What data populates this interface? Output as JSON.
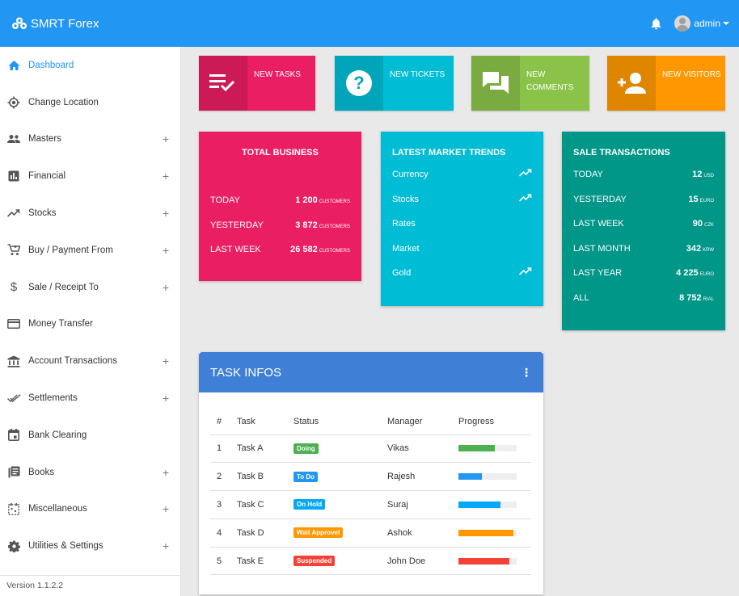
{
  "app": {
    "title": "SMRT Forex",
    "user": "admin"
  },
  "sidebar": {
    "items": [
      {
        "label": "Dashboard",
        "icon": "home-icon",
        "active": true,
        "expandable": false
      },
      {
        "label": "Change Location",
        "icon": "location-icon",
        "expandable": false
      },
      {
        "label": "Masters",
        "icon": "people-icon",
        "expandable": true
      },
      {
        "label": "Financial",
        "icon": "bar-chart-icon",
        "expandable": true
      },
      {
        "label": "Stocks",
        "icon": "trending-icon",
        "expandable": true
      },
      {
        "label": "Buy / Payment From",
        "icon": "cart-icon",
        "expandable": true
      },
      {
        "label": "Sale / Receipt To",
        "icon": "dollar-icon",
        "expandable": true
      },
      {
        "label": "Money Transfer",
        "icon": "card-icon",
        "expandable": false
      },
      {
        "label": "Account Transactions",
        "icon": "bank-icon",
        "expandable": true
      },
      {
        "label": "Settlements",
        "icon": "check-all-icon",
        "expandable": true
      },
      {
        "label": "Bank Clearing",
        "icon": "calendar-icon",
        "expandable": false
      },
      {
        "label": "Books",
        "icon": "books-icon",
        "expandable": true
      },
      {
        "label": "Miscellaneous",
        "icon": "dashed-calendar-icon",
        "expandable": true
      },
      {
        "label": "Utilities & Settings",
        "icon": "gear-icon",
        "expandable": true
      }
    ],
    "expand_symbol": "+",
    "version": "Version 1.1.2.2"
  },
  "infoboxes": [
    {
      "label": "NEW TASKS",
      "icon": "playlist-check-icon",
      "color": "#e91e63"
    },
    {
      "label": "NEW TICKETS",
      "icon": "help-icon",
      "color": "#00bcd4"
    },
    {
      "label": "NEW COMMENTS",
      "icon": "forum-icon",
      "color": "#8bc34a"
    },
    {
      "label": "NEW VISITORS",
      "icon": "person-add-icon",
      "color": "#ff9800"
    }
  ],
  "total_business": {
    "title": "TOTAL BUSINESS",
    "color": "#e91e63",
    "rows": [
      {
        "label": "TODAY",
        "value": "1 200",
        "unit": "CUSTOMERS"
      },
      {
        "label": "YESTERDAY",
        "value": "3 872",
        "unit": "CUSTOMERS"
      },
      {
        "label": "LAST WEEK",
        "value": "26 582",
        "unit": "CUSTOMERS"
      }
    ]
  },
  "market_trends": {
    "title": "LATEST MARKET TRENDS",
    "color": "#00bcd4",
    "rows": [
      {
        "label": "Currency",
        "trend": true
      },
      {
        "label": "Stocks",
        "trend": true
      },
      {
        "label": "Rates",
        "trend": false
      },
      {
        "label": "Market",
        "trend": false
      },
      {
        "label": "Gold",
        "trend": true
      }
    ]
  },
  "sale_transactions": {
    "title": "SALE TRANSACTIONS",
    "color": "#009688",
    "rows": [
      {
        "label": "TODAY",
        "value": "12",
        "unit": "USD"
      },
      {
        "label": "YESTERDAY",
        "value": "15",
        "unit": "EURO"
      },
      {
        "label": "LAST WEEK",
        "value": "90",
        "unit": "CZK"
      },
      {
        "label": "LAST MONTH",
        "value": "342",
        "unit": "KRW"
      },
      {
        "label": "LAST YEAR",
        "value": "4 225",
        "unit": "EURO"
      },
      {
        "label": "ALL",
        "value": "8 752",
        "unit": "RIAL"
      }
    ]
  },
  "task_infos": {
    "title": "TASK INFOS",
    "menu_symbol": "⋮",
    "headers": [
      "#",
      "Task",
      "Status",
      "Manager",
      "Progress"
    ],
    "rows": [
      {
        "num": "1",
        "task": "Task A",
        "status": "Doing",
        "status_color": "#4caf50",
        "manager": "Vikas",
        "progress": 0.62,
        "progress_color": "#4caf50"
      },
      {
        "num": "2",
        "task": "Task B",
        "status": "To Do",
        "status_color": "#2196f3",
        "manager": "Rajesh",
        "progress": 0.4,
        "progress_color": "#2196f3"
      },
      {
        "num": "3",
        "task": "Task C",
        "status": "On Hold",
        "status_color": "#03a9f4",
        "manager": "Suraj",
        "progress": 0.72,
        "progress_color": "#03a9f4"
      },
      {
        "num": "4",
        "task": "Task D",
        "status": "Wait Approvel",
        "status_color": "#ff9800",
        "manager": "Ashok",
        "progress": 0.95,
        "progress_color": "#ff9800"
      },
      {
        "num": "5",
        "task": "Task E",
        "status": "Suspended",
        "status_color": "#f44336",
        "manager": "John Doe",
        "progress": 0.87,
        "progress_color": "#f44336"
      }
    ]
  }
}
